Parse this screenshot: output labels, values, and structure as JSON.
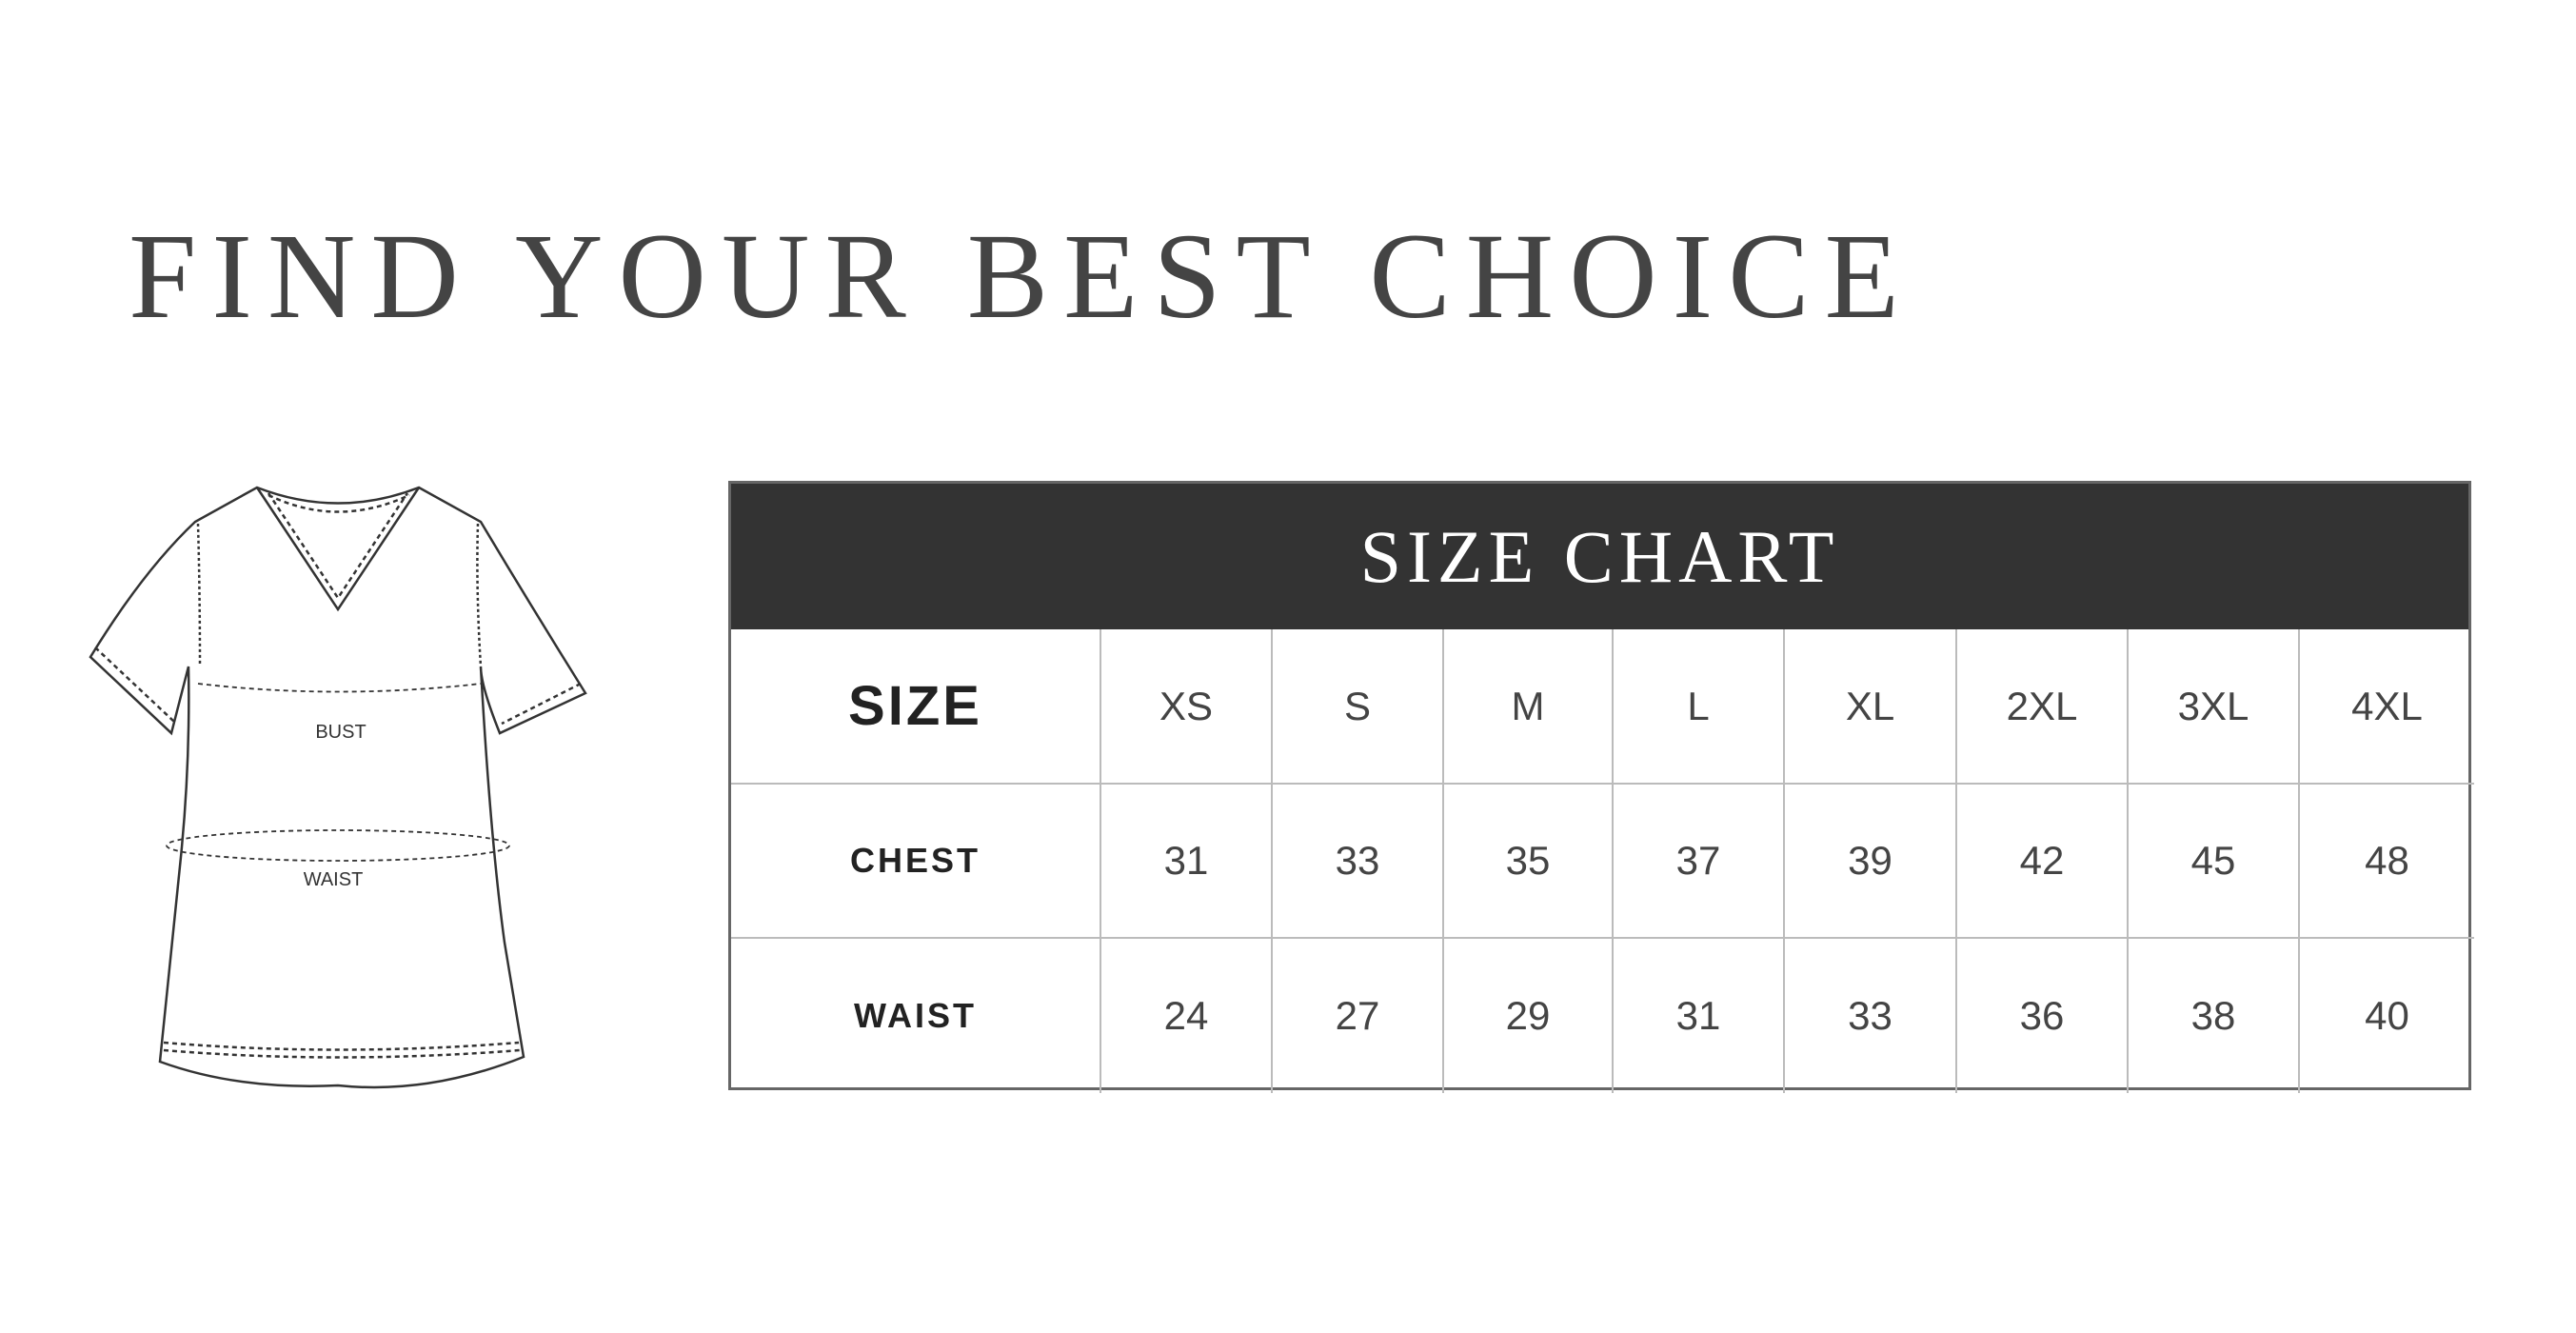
{
  "title": "FIND YOUR BEST CHOICE",
  "illustration": {
    "bust_label": "BUST",
    "waist_label": "WAIST"
  },
  "chart_data": {
    "type": "table",
    "title": "SIZE CHART",
    "columns": [
      "SIZE",
      "XS",
      "S",
      "M",
      "L",
      "XL",
      "2XL",
      "3XL",
      "4XL"
    ],
    "rows": [
      {
        "label": "CHEST",
        "values": [
          "31",
          "33",
          "35",
          "37",
          "39",
          "42",
          "45",
          "48"
        ]
      },
      {
        "label": "WAIST",
        "values": [
          "24",
          "27",
          "29",
          "31",
          "33",
          "36",
          "38",
          "40"
        ]
      }
    ]
  }
}
